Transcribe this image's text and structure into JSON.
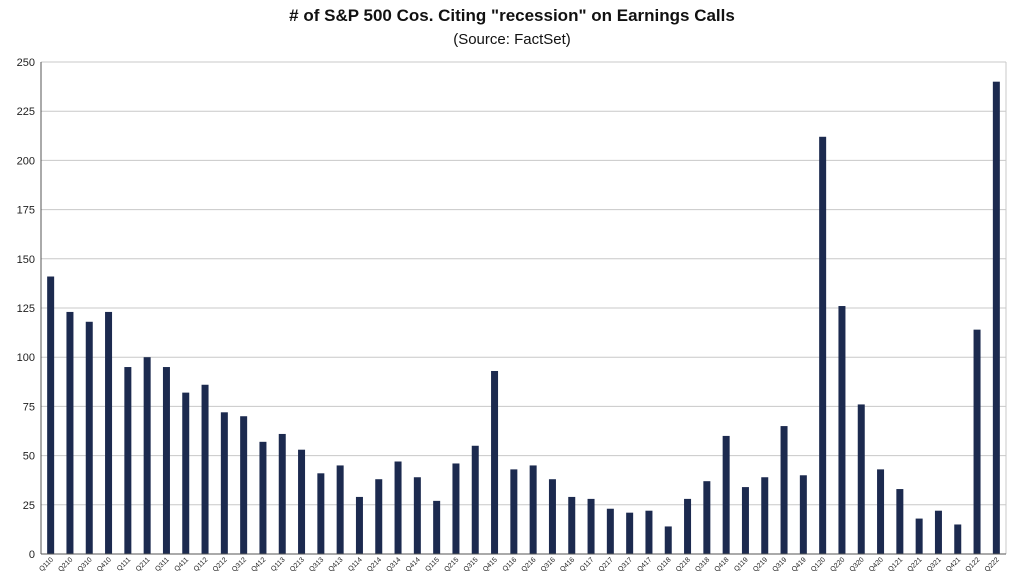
{
  "chart_data": {
    "type": "bar",
    "title": "# of S&P 500 Cos. Citing \"recession\" on Earnings Calls",
    "subtitle": "(Source: FactSet)",
    "xlabel": "",
    "ylabel": "",
    "ylim": [
      0,
      250
    ],
    "yticks": [
      0,
      25,
      50,
      75,
      100,
      125,
      150,
      175,
      200,
      225,
      250
    ],
    "grid": true,
    "bar_color": "#1c2a4f",
    "grid_color": "#c8c8c8",
    "categories": [
      "Q110",
      "Q210",
      "Q310",
      "Q410",
      "Q111",
      "Q211",
      "Q311",
      "Q411",
      "Q112",
      "Q212",
      "Q312",
      "Q412",
      "Q113",
      "Q213",
      "Q313",
      "Q413",
      "Q114",
      "Q214",
      "Q314",
      "Q414",
      "Q115",
      "Q215",
      "Q315",
      "Q415",
      "Q116",
      "Q216",
      "Q316",
      "Q416",
      "Q117",
      "Q217",
      "Q317",
      "Q417",
      "Q118",
      "Q218",
      "Q318",
      "Q418",
      "Q119",
      "Q219",
      "Q319",
      "Q419",
      "Q120",
      "Q220",
      "Q320",
      "Q420",
      "Q121",
      "Q221",
      "Q321",
      "Q421",
      "Q122",
      "Q222"
    ],
    "values": [
      141,
      123,
      118,
      123,
      95,
      100,
      95,
      82,
      86,
      72,
      70,
      57,
      61,
      53,
      41,
      45,
      29,
      38,
      47,
      39,
      27,
      46,
      55,
      93,
      43,
      45,
      38,
      29,
      28,
      23,
      21,
      22,
      14,
      28,
      37,
      60,
      34,
      39,
      65,
      40,
      212,
      126,
      76,
      43,
      33,
      18,
      22,
      15,
      114,
      240
    ]
  }
}
